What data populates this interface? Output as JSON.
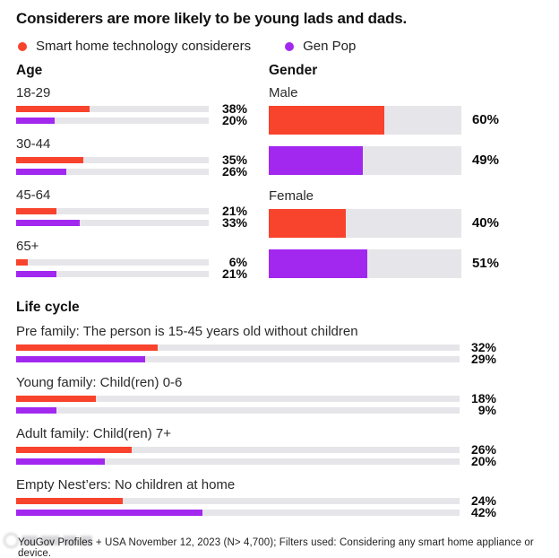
{
  "title": "Considerers are more likely to be young lads and dads.",
  "legend": [
    {
      "label": "Smart home technology considerers",
      "color": "#f8432d"
    },
    {
      "label": "Gen Pop",
      "color": "#a228f0"
    }
  ],
  "colors": {
    "considerers": "#f8432d",
    "genpop": "#a228f0",
    "bar_track": "#e6e6ea",
    "text": "#111111"
  },
  "footer": {
    "source": "YouGov Profiles + USA November 12, 2023 (N> 4,700); Filters used: Considering any smart home appliance or device."
  },
  "chart_data": {
    "type": "bar",
    "orientation": "horizontal",
    "units": "%",
    "xlim": [
      0,
      100
    ],
    "grid": false,
    "legend_position": "top",
    "series_names": [
      "Smart home technology considerers",
      "Gen Pop"
    ],
    "sections": [
      {
        "title": "Age",
        "bar_style": "thin",
        "categories": [
          "18-29",
          "30-44",
          "45-64",
          "65+"
        ],
        "series": [
          {
            "name": "Smart home technology considerers",
            "values": [
              38,
              35,
              21,
              6
            ]
          },
          {
            "name": "Gen Pop",
            "values": [
              20,
              26,
              33,
              21
            ]
          }
        ]
      },
      {
        "title": "Gender",
        "bar_style": "thick",
        "categories": [
          "Male",
          "Female"
        ],
        "series": [
          {
            "name": "Smart home technology considerers",
            "values": [
              60,
              40
            ]
          },
          {
            "name": "Gen Pop",
            "values": [
              49,
              51
            ]
          }
        ]
      },
      {
        "title": "Life cycle",
        "bar_style": "thin",
        "categories": [
          "Pre family: The person is 15-45 years old without children",
          "Young family: Child(ren) 0-6",
          "Adult family: Child(ren) 7+",
          "Empty Nest’ers: No children at home"
        ],
        "series": [
          {
            "name": "Smart home technology considerers",
            "values": [
              32,
              18,
              26,
              24
            ]
          },
          {
            "name": "Gen Pop",
            "values": [
              29,
              9,
              20,
              42
            ]
          }
        ]
      }
    ]
  }
}
